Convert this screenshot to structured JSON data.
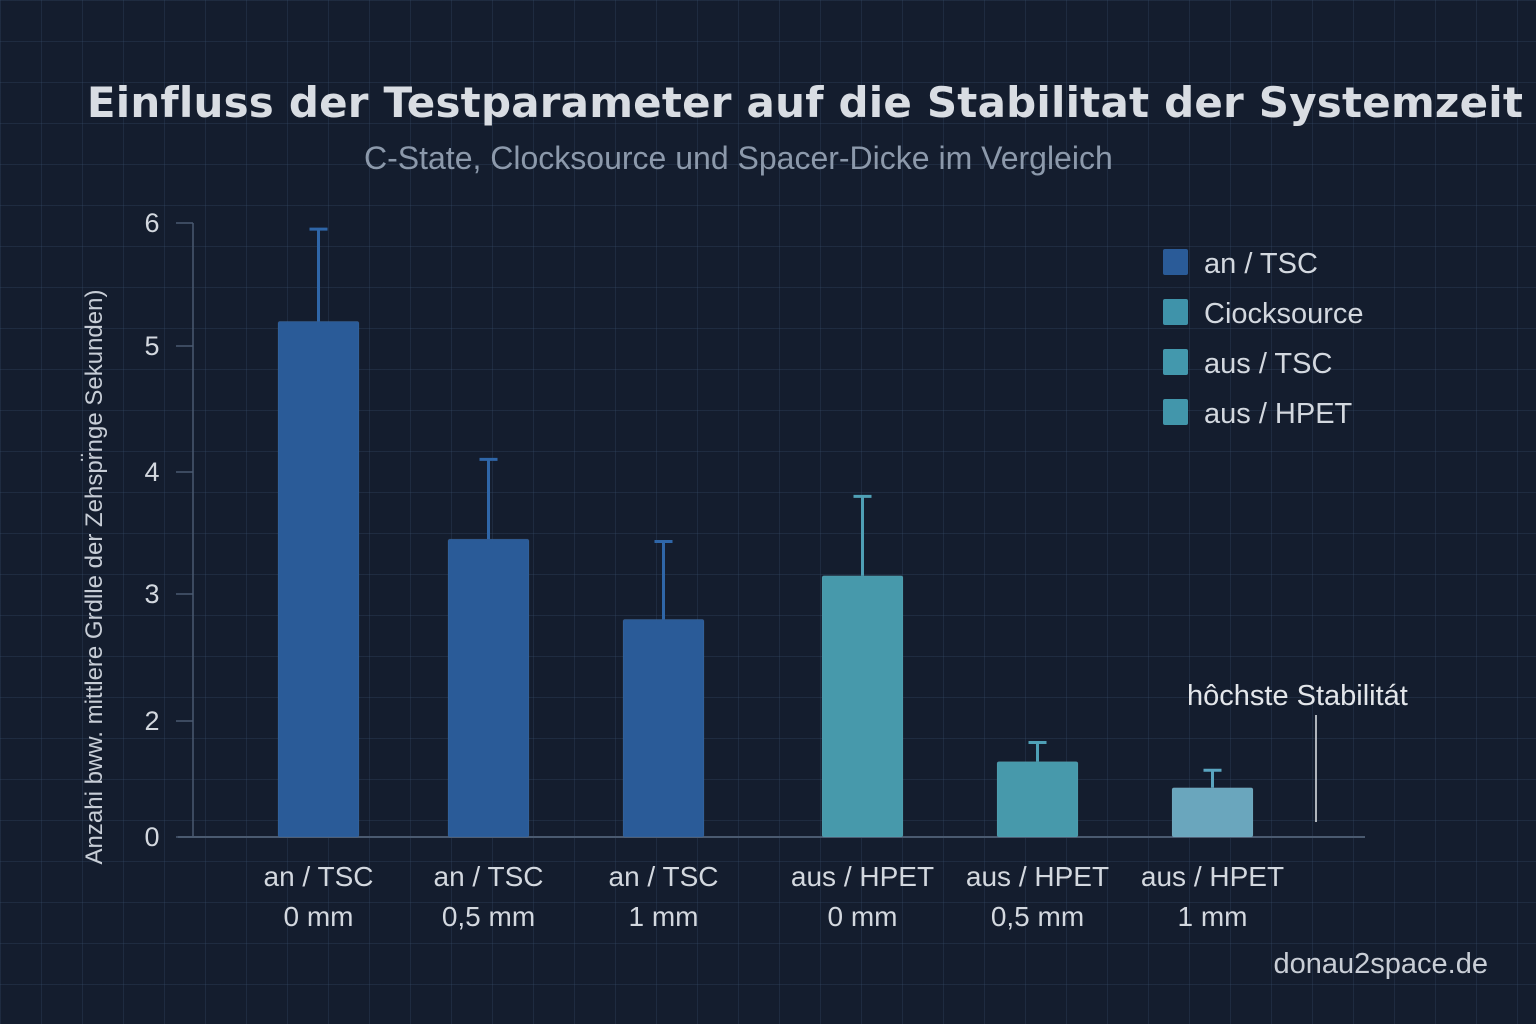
{
  "chart_data": {
    "type": "bar",
    "title": "Einfluss der Testparameter auf die Stabilitat der Systemzeit",
    "subtitle": "C-State, Clocksource und Spacer-Dicke im Vergleich",
    "xlabel": "",
    "ylabel": "Anzahi bww. mittlere Grdlle der Zehspr̈nge Sekunden)",
    "yticks": [
      0,
      2,
      3,
      4,
      5,
      6
    ],
    "ylim": [
      0,
      6
    ],
    "grid": true,
    "categories": [
      {
        "line1": "an / TSC",
        "line2": "0 mm"
      },
      {
        "line1": "an / TSC",
        "line2": "0,5 mm"
      },
      {
        "line1": "an / TSC",
        "line2": "1 mm"
      },
      {
        "line1": "aus / HPET",
        "line2": "0 mm"
      },
      {
        "line1": "aus / HPET",
        "line2": "0,5 mm"
      },
      {
        "line1": "aus / HPET",
        "line2": "1 mm"
      }
    ],
    "values": [
      5.2,
      3.45,
      2.8,
      3.15,
      1.3,
      0.85
    ],
    "error_upper": [
      5.95,
      4.1,
      3.43,
      3.8,
      1.63,
      1.15
    ],
    "bar_colors": [
      "#2a5b98",
      "#2a5b98",
      "#2a5b98",
      "#4799ab",
      "#4799ab",
      "#6aa6bd"
    ],
    "legend": {
      "position": "top-right",
      "entries": [
        {
          "label": "an / TSC",
          "color": "#2a5b98"
        },
        {
          "label": "Ciocksource",
          "color": "#3f93aa"
        },
        {
          "label": "aus / TSC",
          "color": "#4398ad"
        },
        {
          "label": "aus / HPET",
          "color": "#4296ab"
        }
      ]
    },
    "annotation": {
      "text": "hôchste Stabilitát",
      "target_category": 5
    }
  },
  "watermark": "donau2space.de",
  "colors": {
    "background": "#141d2e",
    "axis": "#4a5a70",
    "text": "#d3d8df"
  }
}
